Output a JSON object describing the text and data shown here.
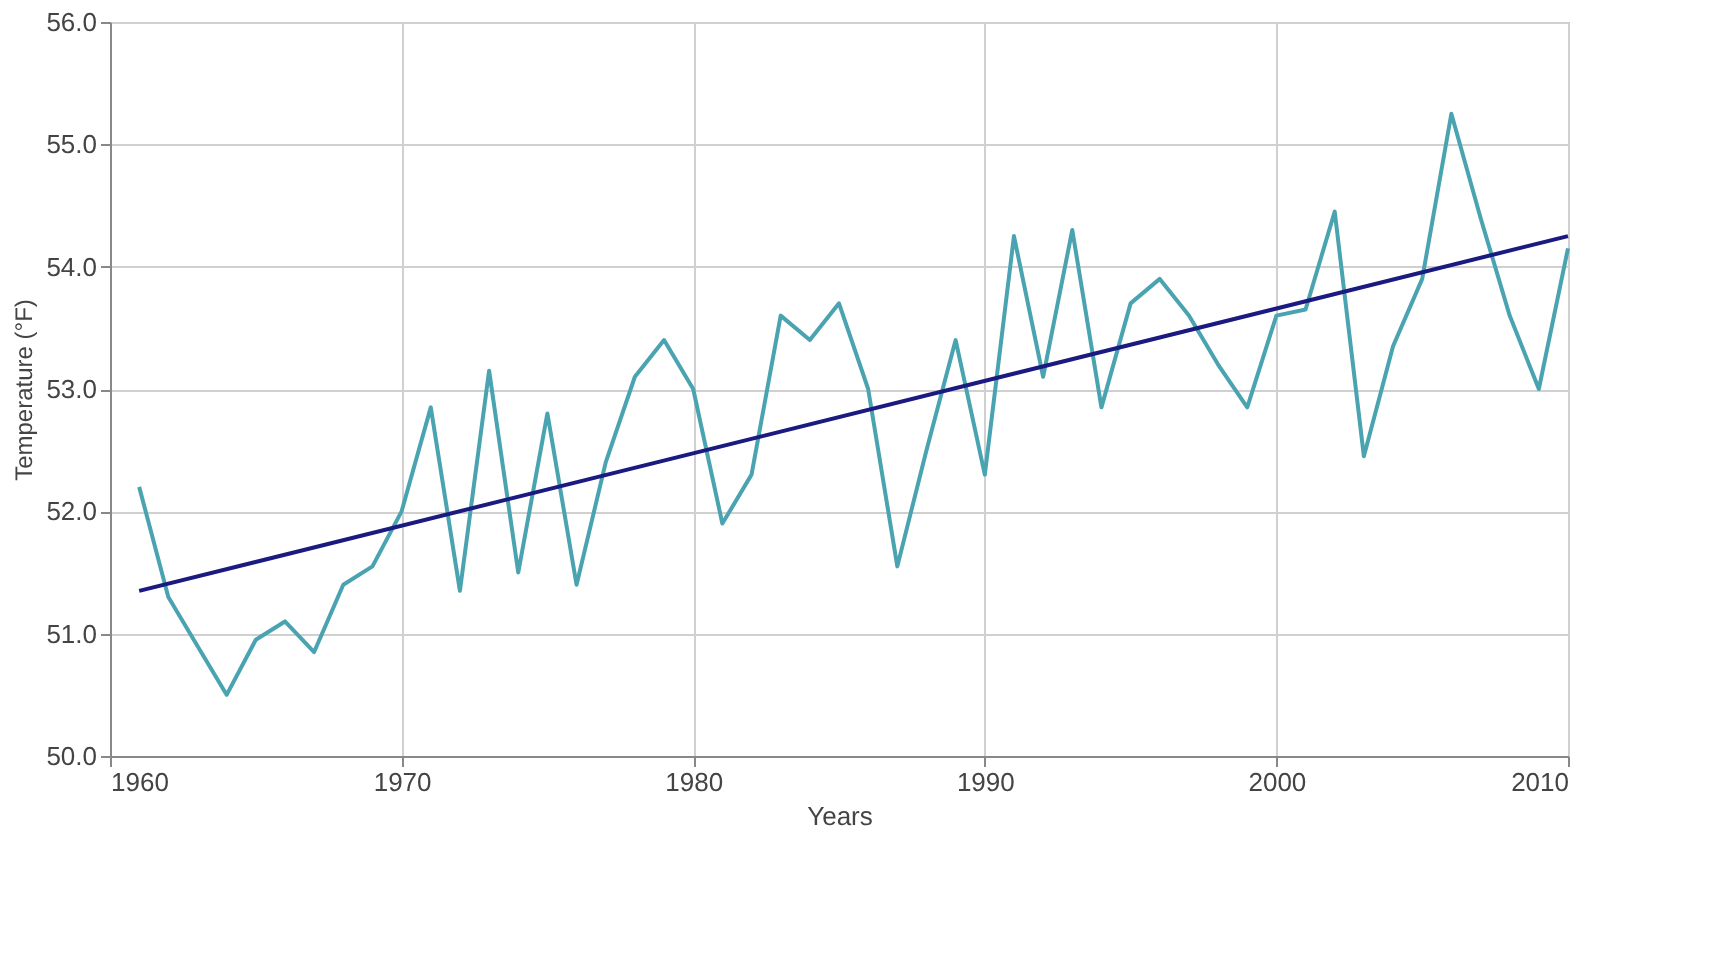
{
  "chart_data": {
    "type": "line",
    "xlabel": "Years",
    "ylabel": "Temperature (°F)",
    "x": [
      1961,
      1962,
      1963,
      1964,
      1965,
      1966,
      1967,
      1968,
      1969,
      1970,
      1971,
      1972,
      1973,
      1974,
      1975,
      1976,
      1977,
      1978,
      1979,
      1980,
      1981,
      1982,
      1983,
      1984,
      1985,
      1986,
      1987,
      1988,
      1989,
      1990,
      1991,
      1992,
      1993,
      1994,
      1995,
      1996,
      1997,
      1998,
      1999,
      2000,
      2001,
      2002,
      2003,
      2004,
      2005,
      2006,
      2007,
      2008,
      2009,
      2010
    ],
    "series": [
      {
        "color": "#4aa3b0",
        "values": [
          52.2,
          51.3,
          50.9,
          50.5,
          50.95,
          51.1,
          50.85,
          51.4,
          51.55,
          52.0,
          52.85,
          51.35,
          53.15,
          51.5,
          52.8,
          51.4,
          52.4,
          53.1,
          53.4,
          53.0,
          51.9,
          52.3,
          53.6,
          53.4,
          53.7,
          53.0,
          51.55,
          52.5,
          53.4,
          52.3,
          54.25,
          53.1,
          54.3,
          52.85,
          53.7,
          53.9,
          53.6,
          53.2,
          52.85,
          53.6,
          53.65,
          54.45,
          52.45,
          53.35,
          53.9,
          55.25,
          54.4,
          53.6,
          53.0,
          54.15
        ]
      },
      {
        "type": "line",
        "color": "#1a1a80",
        "x": [
          1961,
          2010
        ],
        "values": [
          51.35,
          54.25
        ]
      }
    ],
    "xlim": [
      1960,
      2010
    ],
    "xticks": [
      1960,
      1970,
      1980,
      1990,
      2000,
      2010
    ],
    "ylim": [
      50,
      56
    ],
    "yticks": [
      {
        "value": 50,
        "label": "50.0"
      },
      {
        "value": 51,
        "label": "51.0"
      },
      {
        "value": 52,
        "label": "52.0"
      },
      {
        "value": 53,
        "label": "53.0"
      },
      {
        "value": 54,
        "label": "54.0"
      },
      {
        "value": 55,
        "label": "55.0"
      },
      {
        "value": 56,
        "label": "56.0"
      }
    ],
    "grid": true,
    "marker": "none",
    "line_style": "solid"
  }
}
